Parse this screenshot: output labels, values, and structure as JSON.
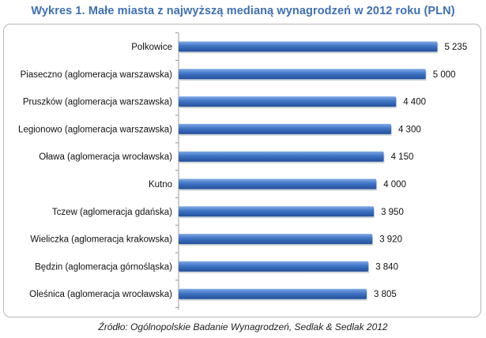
{
  "chart_data": {
    "type": "bar",
    "orientation": "horizontal",
    "title": "Wykres 1. Małe miasta z najwyższą medianą wynagrodzeń w 2012 roku (PLN)",
    "xlabel": "",
    "ylabel": "",
    "categories": [
      "Polkowice",
      "Piaseczno (aglomeracja warszawska)",
      "Pruszków (aglomeracja warszawska)",
      "Legionowo (aglomeracja warszawska)",
      "Oława (aglomeracja wrocławska)",
      "Kutno",
      "Tczew (aglomeracja gdańska)",
      "Wieliczka (aglomeracja krakowska)",
      "Będzin (aglomeracja górnośląska)",
      "Oleśnica (aglomeracja wrocławska)"
    ],
    "values": [
      5235,
      5000,
      4400,
      4300,
      4150,
      4000,
      3950,
      3920,
      3840,
      3805
    ],
    "value_labels": [
      "5 235",
      "5 000",
      "4 400",
      "4 300",
      "4 150",
      "4 000",
      "3 950",
      "3 920",
      "3 840",
      "3 805"
    ],
    "xlim": [
      0,
      5700
    ],
    "grid": false,
    "legend": "none",
    "bar_color": "#3a6fc0",
    "source": "Źródło: Ogólnopolskie Badanie Wynagrodzeń, Sedlak & Sedlak 2012"
  }
}
